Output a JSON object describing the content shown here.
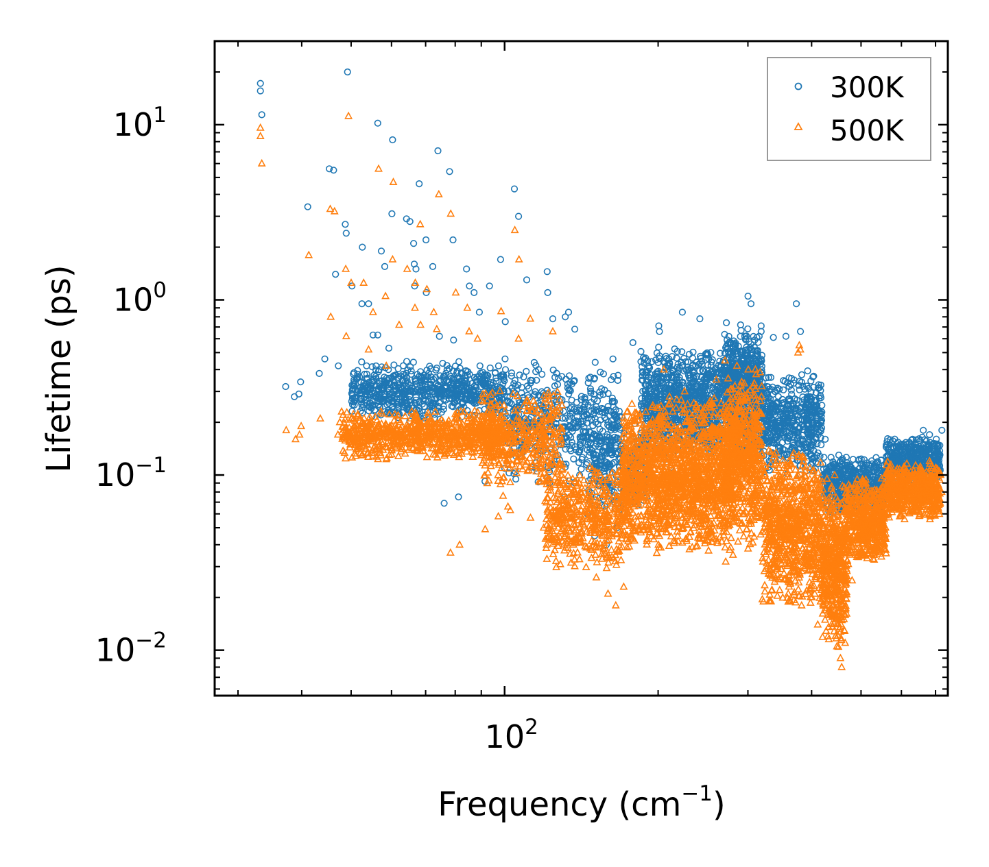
{
  "chart_data": {
    "type": "scatter",
    "xscale": "log",
    "yscale": "log",
    "xlim": [
      27,
      740
    ],
    "ylim": [
      0.0055,
      30
    ],
    "xlabel": "Frequency (cm",
    "xlabel_sup": "−1",
    "xlabel_close": ")",
    "ylabel": "Lifetime (ps)",
    "x_major_ticks": [
      {
        "value": 100,
        "base": "10",
        "exp": "2"
      }
    ],
    "y_major_ticks": [
      {
        "value": 10,
        "base": "10",
        "exp": "1"
      },
      {
        "value": 1,
        "base": "10",
        "exp": "0"
      },
      {
        "value": 0.1,
        "base": "10",
        "exp": "−1"
      },
      {
        "value": 0.01,
        "base": "10",
        "exp": "−2"
      }
    ],
    "legend": {
      "location": "top-right",
      "entries": [
        "300K",
        "500K"
      ]
    },
    "series": [
      {
        "name": "300K",
        "marker": "circle",
        "color": "#1f77b4",
        "points": [
          [
            33.2,
            17.2
          ],
          [
            33.2,
            15.6
          ],
          [
            33.4,
            11.4
          ],
          [
            49.2,
            20.0
          ],
          [
            56.4,
            10.2
          ],
          [
            60.3,
            8.2
          ],
          [
            74.0,
            7.1
          ],
          [
            78.0,
            5.4
          ],
          [
            68.0,
            4.6
          ],
          [
            104.5,
            4.3
          ],
          [
            45.3,
            5.6
          ],
          [
            46.2,
            5.5
          ],
          [
            41.1,
            3.4
          ],
          [
            60.1,
            3.1
          ],
          [
            64.2,
            2.9
          ],
          [
            65.2,
            2.8
          ],
          [
            48.7,
            2.7
          ],
          [
            48.9,
            2.4
          ],
          [
            52.6,
            2.0
          ],
          [
            66.3,
            2.1
          ],
          [
            70.1,
            2.2
          ],
          [
            79.2,
            2.2
          ],
          [
            106.5,
            3.0
          ],
          [
            57.3,
            1.9
          ],
          [
            46.6,
            1.4
          ],
          [
            58.2,
            1.55
          ],
          [
            66.5,
            1.6
          ],
          [
            67.0,
            1.5
          ],
          [
            72.3,
            1.55
          ],
          [
            84.2,
            1.5
          ],
          [
            98.2,
            1.7
          ],
          [
            110.5,
            1.3
          ],
          [
            121.2,
            1.45
          ],
          [
            85.3,
            1.2
          ],
          [
            93.4,
            1.2
          ],
          [
            50.2,
            1.2
          ],
          [
            52.5,
            0.95
          ],
          [
            54.1,
            0.95
          ],
          [
            66.6,
            1.2
          ],
          [
            70.2,
            1.1
          ],
          [
            87.1,
            1.1
          ],
          [
            89.2,
            0.85
          ],
          [
            100.3,
            0.75
          ],
          [
            121.5,
            1.1
          ],
          [
            124.3,
            0.78
          ],
          [
            131.5,
            0.8
          ],
          [
            133.5,
            0.85
          ],
          [
            137.3,
            0.68
          ],
          [
            55.2,
            0.63
          ],
          [
            56.4,
            0.63
          ],
          [
            59.3,
            0.53
          ],
          [
            37.2,
            0.32
          ],
          [
            38.7,
            0.28
          ],
          [
            39.5,
            0.29
          ],
          [
            39.8,
            0.34
          ],
          [
            43.3,
            0.38
          ],
          [
            47.2,
            0.42
          ],
          [
            44.4,
            0.46
          ],
          [
            74.5,
            0.62
          ],
          [
            79.4,
            0.59
          ],
          [
            81.2,
            0.075
          ],
          [
            76.1,
            0.069
          ],
          [
            91.5,
            0.092
          ],
          [
            100.2,
            0.46
          ],
          [
            116.5,
            0.4
          ],
          [
            150.5,
            0.44
          ],
          [
            163.1,
            0.46
          ],
          [
            178.5,
            0.57
          ],
          [
            200.6,
            0.71
          ],
          [
            201.2,
            0.66
          ],
          [
            223.1,
            0.85
          ],
          [
            241.5,
            0.78
          ],
          [
            272.2,
            0.74
          ],
          [
            290.2,
            0.72
          ],
          [
            300.1,
            1.05
          ],
          [
            304.2,
            0.95
          ],
          [
            318.5,
            0.66
          ],
          [
            336.5,
            0.61
          ],
          [
            356.2,
            0.62
          ],
          [
            373.3,
            0.95
          ],
          [
            380.4,
            0.66
          ],
          [
            397.2,
            0.28
          ],
          [
            405.1,
            0.23
          ],
          [
            425.3,
            0.16
          ],
          [
            452.3,
            0.13
          ],
          [
            484.6,
            0.09
          ],
          [
            503.2,
            0.066
          ],
          [
            524.1,
            0.057
          ],
          [
            553.5,
            0.11
          ],
          [
            581.2,
            0.13
          ],
          [
            601.3,
            0.15
          ],
          [
            631.1,
            0.16
          ],
          [
            662.4,
            0.18
          ],
          [
            681.2,
            0.17
          ],
          [
            690.1,
            0.15
          ],
          [
            145.3,
            0.06
          ],
          [
            150.2,
            0.045
          ],
          [
            158.3,
            0.04
          ],
          [
            166.1,
            0.05
          ],
          [
            171.5,
            0.06
          ],
          [
            131.2,
            0.075
          ],
          [
            122.5,
            0.09
          ],
          [
            116.2,
            0.13
          ],
          [
            140.3,
            0.1
          ],
          [
            161.2,
            0.09
          ],
          [
            181.5,
            0.1
          ],
          [
            211.4,
            0.11
          ],
          [
            250.6,
            0.14
          ],
          [
            280.2,
            0.22
          ],
          [
            321.5,
            0.17
          ],
          [
            351.2,
            0.14
          ],
          [
            391.5,
            0.12
          ],
          [
            430.3,
            0.09
          ],
          [
            460.5,
            0.1
          ],
          [
            540.1,
            0.08
          ],
          [
            575.4,
            0.12
          ],
          [
            620.6,
            0.14
          ],
          [
            655.2,
            0.12
          ],
          [
            700.1,
            0.13
          ],
          [
            720.3,
            0.18
          ]
        ],
        "bands": [
          {
            "x0": 50,
            "x1": 100,
            "ylow": 0.2,
            "yhigh": 0.45,
            "n": 700
          },
          {
            "x0": 100,
            "x1": 170,
            "ylow": 0.09,
            "yhigh": 0.45,
            "n": 500
          },
          {
            "x0": 145,
            "x1": 190,
            "ylow": 0.06,
            "yhigh": 0.2,
            "n": 250
          },
          {
            "x0": 185,
            "x1": 320,
            "ylow": 0.12,
            "yhigh": 0.55,
            "n": 1300
          },
          {
            "x0": 270,
            "x1": 320,
            "ylow": 0.2,
            "yhigh": 0.72,
            "n": 300
          },
          {
            "x0": 320,
            "x1": 420,
            "ylow": 0.1,
            "yhigh": 0.4,
            "n": 500
          },
          {
            "x0": 420,
            "x1": 560,
            "ylow": 0.06,
            "yhigh": 0.13,
            "n": 500
          },
          {
            "x0": 560,
            "x1": 715,
            "ylow": 0.09,
            "yhigh": 0.17,
            "n": 450
          }
        ]
      },
      {
        "name": "500K",
        "marker": "triangle",
        "color": "#ff7f0e",
        "points": [
          [
            33.2,
            9.6
          ],
          [
            33.2,
            8.6
          ],
          [
            33.4,
            6.0
          ],
          [
            49.4,
            11.2
          ],
          [
            56.6,
            5.6
          ],
          [
            60.5,
            4.7
          ],
          [
            74.3,
            4.0
          ],
          [
            78.4,
            3.1
          ],
          [
            68.3,
            2.7
          ],
          [
            104.7,
            2.5
          ],
          [
            106.7,
            1.7
          ],
          [
            45.5,
            3.3
          ],
          [
            46.4,
            3.2
          ],
          [
            41.3,
            1.8
          ],
          [
            48.8,
            1.5
          ],
          [
            50.0,
            1.25
          ],
          [
            52.9,
            1.25
          ],
          [
            58.4,
            1.05
          ],
          [
            60.3,
            1.7
          ],
          [
            64.4,
            1.5
          ],
          [
            66.8,
            1.25
          ],
          [
            70.4,
            1.15
          ],
          [
            72.6,
            0.85
          ],
          [
            80.2,
            1.1
          ],
          [
            84.5,
            0.9
          ],
          [
            45.6,
            0.8
          ],
          [
            55.2,
            0.85
          ],
          [
            62.1,
            0.72
          ],
          [
            66.7,
            0.9
          ],
          [
            68.4,
            0.72
          ],
          [
            73.6,
            0.68
          ],
          [
            85.2,
            0.66
          ],
          [
            88.5,
            0.6
          ],
          [
            98.4,
            0.86
          ],
          [
            106.5,
            0.6
          ],
          [
            112.3,
            0.78
          ],
          [
            124.3,
            0.66
          ],
          [
            48.9,
            0.62
          ],
          [
            54.1,
            0.52
          ],
          [
            58.6,
            0.42
          ],
          [
            37.3,
            0.18
          ],
          [
            38.9,
            0.16
          ],
          [
            39.6,
            0.17
          ],
          [
            39.9,
            0.19
          ],
          [
            43.5,
            0.21
          ],
          [
            47.1,
            0.17
          ],
          [
            47.5,
            0.2
          ],
          [
            47.9,
            0.23
          ],
          [
            48.9,
            0.18
          ],
          [
            50.1,
            0.18
          ],
          [
            78.3,
            0.036
          ],
          [
            81.6,
            0.04
          ],
          [
            91.6,
            0.049
          ],
          [
            97.2,
            0.058
          ],
          [
            99.3,
            0.076
          ],
          [
            101.5,
            0.066
          ],
          [
            102.6,
            0.063
          ],
          [
            112.4,
            0.057
          ],
          [
            119.3,
            0.05
          ],
          [
            126.2,
            0.044
          ],
          [
            136.4,
            0.04
          ],
          [
            140.2,
            0.033
          ],
          [
            151.3,
            0.026
          ],
          [
            159.5,
            0.021
          ],
          [
            165.2,
            0.018
          ],
          [
            171.2,
            0.023
          ],
          [
            186.5,
            0.051
          ],
          [
            200.3,
            0.04
          ],
          [
            231.3,
            0.047
          ],
          [
            251.6,
            0.044
          ],
          [
            271.4,
            0.032
          ],
          [
            280.5,
            0.035
          ],
          [
            300.2,
            0.038
          ],
          [
            321.2,
            0.032
          ],
          [
            346.3,
            0.022
          ],
          [
            363.5,
            0.019
          ],
          [
            382.4,
            0.018
          ],
          [
            411.2,
            0.014
          ],
          [
            430.5,
            0.012
          ],
          [
            448.3,
            0.0105
          ],
          [
            455.6,
            0.009
          ],
          [
            458.2,
            0.008
          ],
          [
            465.5,
            0.011
          ],
          [
            480.3,
            0.025
          ],
          [
            497.4,
            0.036
          ],
          [
            520.3,
            0.045
          ],
          [
            548.6,
            0.065
          ],
          [
            580.4,
            0.07
          ],
          [
            610.2,
            0.08
          ],
          [
            656.3,
            0.08
          ],
          [
            681.3,
            0.12
          ],
          [
            701.2,
            0.11
          ],
          [
            719.5,
            0.08
          ],
          [
            716.3,
            0.1
          ],
          [
            690.2,
            0.06
          ],
          [
            270.5,
            0.45
          ],
          [
            285.5,
            0.42
          ],
          [
            300.5,
            0.4
          ],
          [
            310.3,
            0.4
          ],
          [
            260.2,
            0.35
          ],
          [
            225.4,
            0.3
          ],
          [
            210.5,
            0.28
          ],
          [
            195.3,
            0.25
          ],
          [
            205.3,
            0.4
          ],
          [
            378.3,
            0.55
          ],
          [
            380.2,
            0.52
          ],
          [
            376.3,
            0.5
          ]
        ],
        "bands": [
          {
            "x0": 48,
            "x1": 100,
            "ylow": 0.12,
            "yhigh": 0.24,
            "n": 800
          },
          {
            "x0": 90,
            "x1": 130,
            "ylow": 0.08,
            "yhigh": 0.32,
            "n": 400
          },
          {
            "x0": 120,
            "x1": 175,
            "ylow": 0.028,
            "yhigh": 0.12,
            "n": 500
          },
          {
            "x0": 170,
            "x1": 280,
            "ylow": 0.035,
            "yhigh": 0.28,
            "n": 1600
          },
          {
            "x0": 270,
            "x1": 320,
            "ylow": 0.04,
            "yhigh": 0.4,
            "n": 600
          },
          {
            "x0": 320,
            "x1": 420,
            "ylow": 0.018,
            "yhigh": 0.15,
            "n": 800
          },
          {
            "x0": 420,
            "x1": 470,
            "ylow": 0.01,
            "yhigh": 0.1,
            "n": 500
          },
          {
            "x0": 470,
            "x1": 560,
            "ylow": 0.03,
            "yhigh": 0.1,
            "n": 500
          },
          {
            "x0": 560,
            "x1": 715,
            "ylow": 0.055,
            "yhigh": 0.12,
            "n": 600
          }
        ]
      }
    ]
  }
}
